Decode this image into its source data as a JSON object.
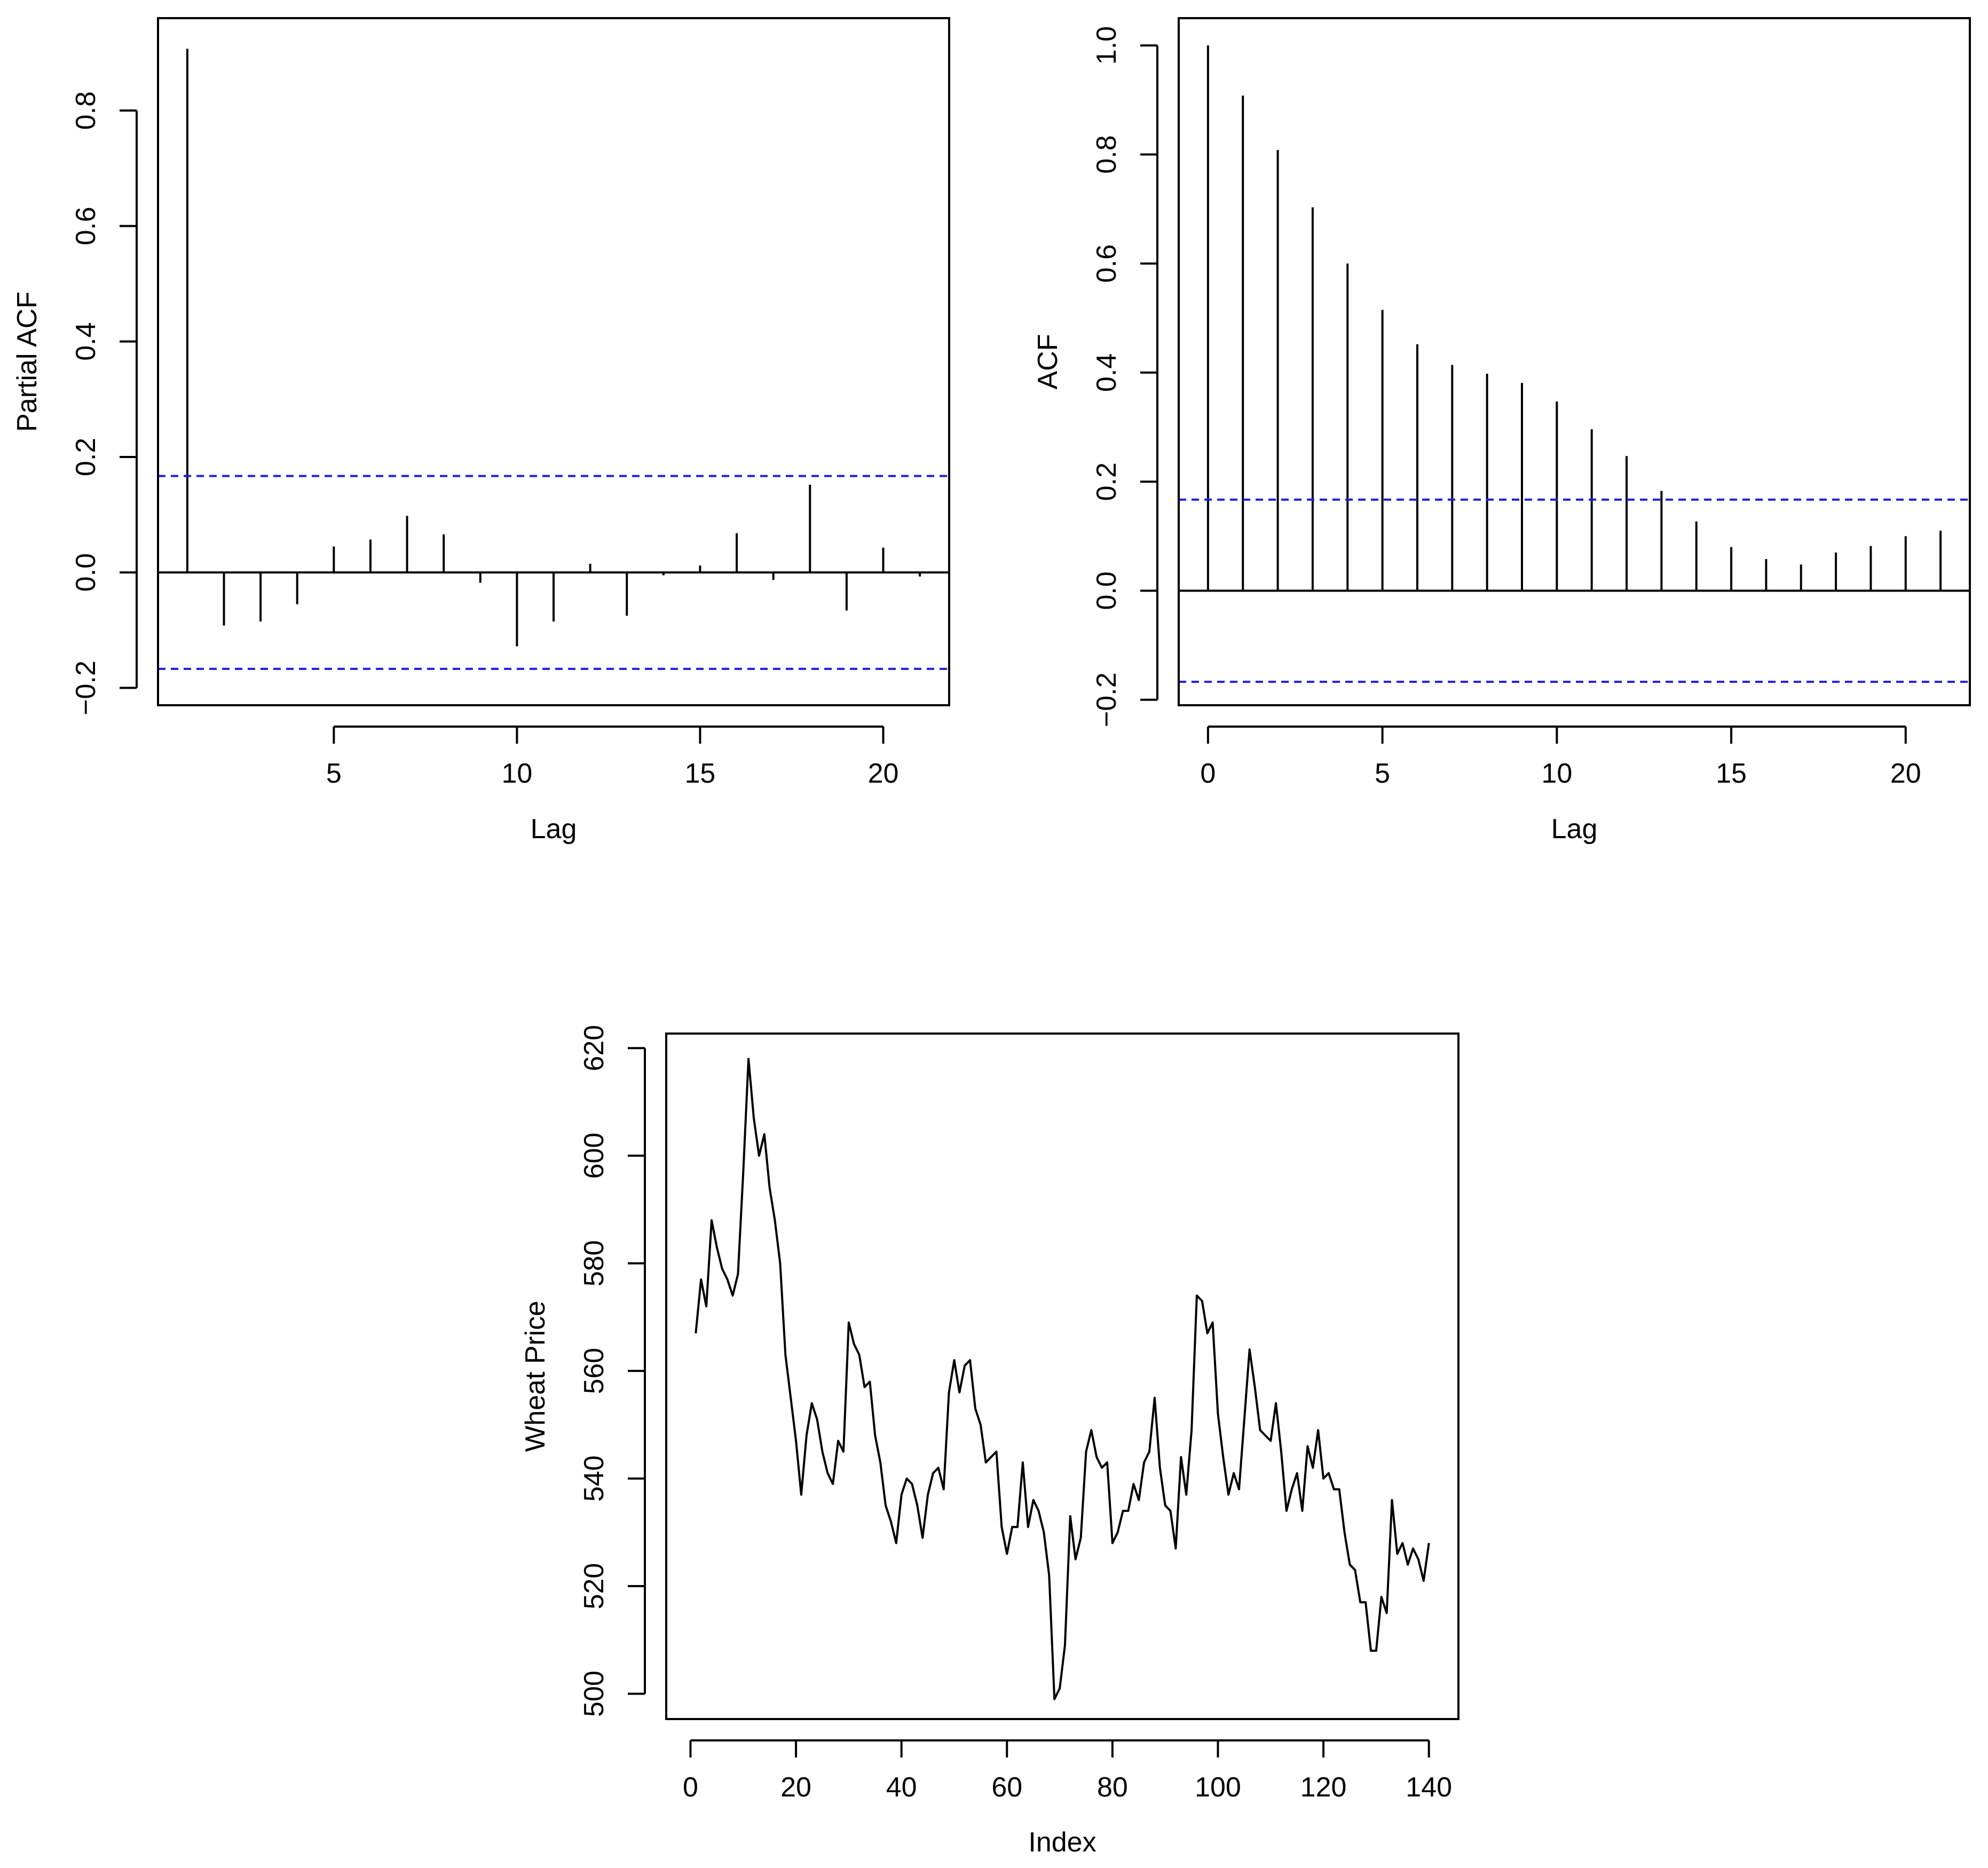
{
  "chart_data": [
    {
      "id": "pacf",
      "type": "bar",
      "subtype": "pacf-spikes",
      "title": "",
      "xlabel": "Lag",
      "ylabel": "Partial ACF",
      "xlim": [
        0.2,
        21.8
      ],
      "ylim": [
        -0.23,
        0.96
      ],
      "x_ticks": [
        5,
        10,
        15,
        20
      ],
      "y_ticks": [
        -0.2,
        0.0,
        0.2,
        0.4,
        0.6,
        0.8
      ],
      "x_tick_labels": [
        "5",
        "10",
        "15",
        "20"
      ],
      "y_tick_labels": [
        "−0.2",
        "0.0",
        "0.2",
        "0.4",
        "0.6",
        "0.8"
      ],
      "confidence_bound": 0.167,
      "lags": [
        1,
        2,
        3,
        4,
        5,
        6,
        7,
        8,
        9,
        10,
        11,
        12,
        13,
        14,
        15,
        16,
        17,
        18,
        19,
        20,
        21
      ],
      "values": [
        0.907,
        -0.092,
        -0.085,
        -0.055,
        0.045,
        0.057,
        0.098,
        0.066,
        -0.018,
        -0.128,
        -0.085,
        0.015,
        -0.075,
        -0.005,
        0.012,
        0.068,
        -0.013,
        0.152,
        -0.066,
        0.043,
        -0.007
      ]
    },
    {
      "id": "acf",
      "type": "bar",
      "subtype": "acf-spikes",
      "title": "",
      "xlabel": "Lag",
      "ylabel": "ACF",
      "xlim": [
        -0.84,
        21.84
      ],
      "ylim": [
        -0.21,
        1.05
      ],
      "x_ticks": [
        0,
        5,
        10,
        15,
        20
      ],
      "y_ticks": [
        -0.2,
        0.0,
        0.2,
        0.4,
        0.6,
        0.8,
        1.0
      ],
      "x_tick_labels": [
        "0",
        "5",
        "10",
        "15",
        "20"
      ],
      "y_tick_labels": [
        "−0.2",
        "0.0",
        "0.2",
        "0.4",
        "0.6",
        "0.8",
        "1.0"
      ],
      "confidence_bound": 0.167,
      "lags": [
        0,
        1,
        2,
        3,
        4,
        5,
        6,
        7,
        8,
        9,
        10,
        11,
        12,
        13,
        14,
        15,
        16,
        17,
        18,
        19,
        20,
        21
      ],
      "values": [
        1.0,
        0.908,
        0.808,
        0.703,
        0.6,
        0.515,
        0.452,
        0.414,
        0.398,
        0.381,
        0.347,
        0.296,
        0.247,
        0.183,
        0.127,
        0.08,
        0.058,
        0.048,
        0.07,
        0.082,
        0.1,
        0.11
      ]
    },
    {
      "id": "series",
      "type": "line",
      "title": "",
      "xlabel": "Index",
      "ylabel": "Wheat Price",
      "xlim": [
        -4.6,
        145.6
      ],
      "ylim": [
        495.3,
        622.7
      ],
      "x_ticks": [
        0,
        20,
        40,
        60,
        80,
        100,
        120,
        140
      ],
      "y_ticks": [
        500,
        520,
        540,
        560,
        580,
        600,
        620
      ],
      "x_tick_labels": [
        "0",
        "20",
        "40",
        "60",
        "80",
        "100",
        "120",
        "140"
      ],
      "y_tick_labels": [
        "500",
        "520",
        "540",
        "560",
        "580",
        "600",
        "620"
      ],
      "x": [
        1,
        2,
        3,
        4,
        5,
        6,
        7,
        8,
        9,
        10,
        11,
        12,
        13,
        14,
        15,
        16,
        17,
        18,
        19,
        20,
        21,
        22,
        23,
        24,
        25,
        26,
        27,
        28,
        29,
        30,
        31,
        32,
        33,
        34,
        35,
        36,
        37,
        38,
        39,
        40,
        41,
        42,
        43,
        44,
        45,
        46,
        47,
        48,
        49,
        50,
        51,
        52,
        53,
        54,
        55,
        56,
        57,
        58,
        59,
        60,
        61,
        62,
        63,
        64,
        65,
        66,
        67,
        68,
        69,
        70,
        71,
        72,
        73,
        74,
        75,
        76,
        77,
        78,
        79,
        80,
        81,
        82,
        83,
        84,
        85,
        86,
        87,
        88,
        89,
        90,
        91,
        92,
        93,
        94,
        95,
        96,
        97,
        98,
        99,
        100,
        101,
        102,
        103,
        104,
        105,
        106,
        107,
        108,
        109,
        110,
        111,
        112,
        113,
        114,
        115,
        116,
        117,
        118,
        119,
        120,
        121,
        122,
        123,
        124,
        125,
        126,
        127,
        128,
        129,
        130,
        131,
        132,
        133,
        134,
        135,
        136,
        137,
        138,
        139,
        140
      ],
      "y": [
        567,
        577,
        572,
        588,
        583,
        579,
        577,
        574,
        578,
        597,
        618,
        607,
        600,
        604,
        594,
        588,
        580,
        563,
        555,
        547,
        537,
        548,
        554,
        551,
        545,
        541,
        539,
        547,
        545,
        569,
        565,
        563,
        557,
        558,
        548,
        543,
        535,
        532,
        528,
        537,
        540,
        539,
        535,
        529,
        537,
        541,
        542,
        538,
        556,
        562,
        556,
        561,
        562,
        553,
        550,
        543,
        544,
        545,
        531,
        526,
        531,
        531,
        543,
        531,
        536,
        534,
        530,
        522,
        499,
        501,
        509,
        533,
        525,
        529,
        545,
        549,
        544,
        542,
        543,
        528,
        530,
        534,
        534,
        539,
        536,
        543,
        545,
        555,
        542,
        535,
        534,
        527,
        544,
        537,
        549,
        574,
        573,
        567,
        569,
        552,
        544,
        537,
        541,
        538,
        551,
        564,
        557,
        549,
        548,
        547,
        554,
        545,
        534,
        538,
        541,
        534,
        546,
        542,
        549,
        540,
        541,
        538,
        538,
        530,
        524,
        523,
        517,
        517,
        508,
        508,
        518,
        515,
        536,
        526,
        528,
        524,
        527,
        525,
        521,
        528
      ]
    }
  ]
}
